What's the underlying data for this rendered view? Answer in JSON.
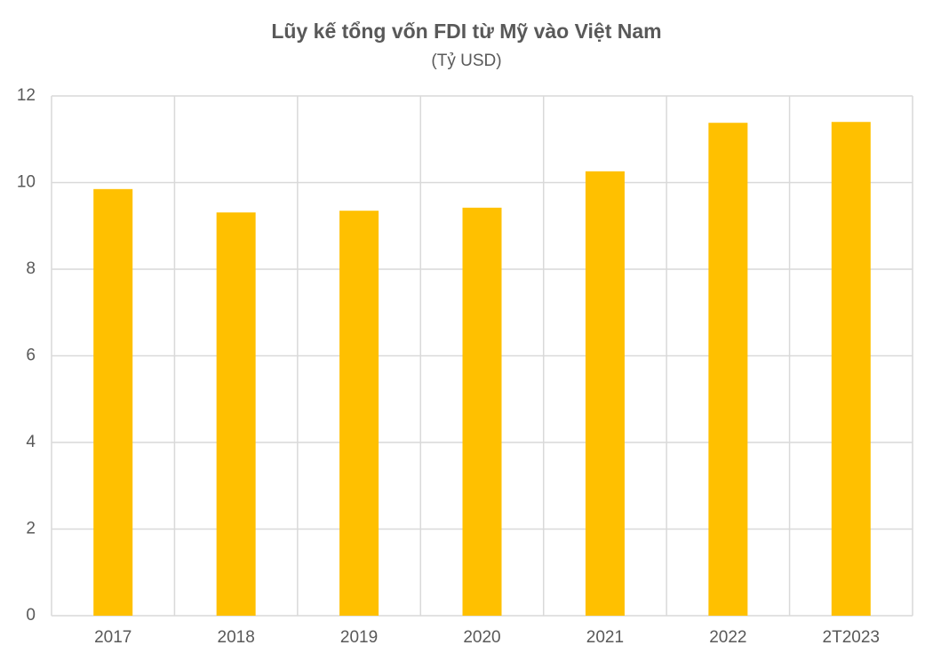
{
  "chart_data": {
    "type": "bar",
    "title": "Lũy kế tổng vốn FDI từ Mỹ vào Việt Nam",
    "subtitle": "(Tỷ USD)",
    "categories": [
      "2017",
      "2018",
      "2019",
      "2020",
      "2021",
      "2022",
      "2T2023"
    ],
    "values": [
      9.85,
      9.31,
      9.35,
      9.42,
      10.26,
      11.38,
      11.4
    ],
    "color": "#ffc000",
    "ylim": [
      0,
      12
    ],
    "yticks": [
      0,
      2,
      4,
      6,
      8,
      10,
      12
    ],
    "grid": true
  }
}
